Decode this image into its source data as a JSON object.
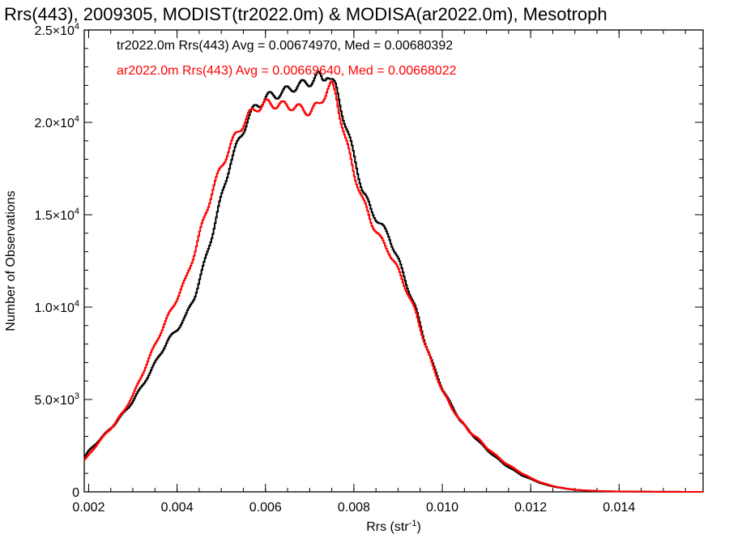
{
  "chart_data": {
    "type": "line",
    "title": "Rrs(443), 2009305, MODIST(tr2022.0m) & MODISA(ar2022.0m), Mesotroph",
    "xlabel": "Rrs (str",
    "xlabel_sup": "-1",
    "xlabel_close": ")",
    "ylabel": "Number of Observations",
    "xlim": [
      0.0019,
      0.0159
    ],
    "ylim": [
      0,
      25000
    ],
    "xticks": [
      {
        "value": 0.002,
        "label": "0.002"
      },
      {
        "value": 0.004,
        "label": "0.004"
      },
      {
        "value": 0.006,
        "label": "0.006"
      },
      {
        "value": 0.008,
        "label": "0.008"
      },
      {
        "value": 0.01,
        "label": "0.010"
      },
      {
        "value": 0.012,
        "label": "0.012"
      },
      {
        "value": 0.014,
        "label": "0.014"
      }
    ],
    "yticks": [
      {
        "value": 0,
        "mant": "0",
        "exp": ""
      },
      {
        "value": 5000,
        "mant": "5.0×10",
        "exp": "3"
      },
      {
        "value": 10000,
        "mant": "1.0×10",
        "exp": "4"
      },
      {
        "value": 15000,
        "mant": "1.5×10",
        "exp": "4"
      },
      {
        "value": 20000,
        "mant": "2.0×10",
        "exp": "4"
      },
      {
        "value": 25000,
        "mant": "2.5×10",
        "exp": "4"
      }
    ],
    "annotations": [
      {
        "text": "tr2022.0m Rrs(443) Avg = 0.00674970, Med = 0.00680392",
        "color": "#000000"
      },
      {
        "text": "ar2022.0m Rrs(443) Avg = 0.00669640, Med = 0.00668022",
        "color": "#ff0000"
      }
    ],
    "series": [
      {
        "color": "#000000",
        "x": [
          0.0019,
          0.002,
          0.0022,
          0.0024,
          0.0026,
          0.0028,
          0.003,
          0.0032,
          0.0034,
          0.0036,
          0.0038,
          0.004,
          0.0042,
          0.0044,
          0.0046,
          0.0048,
          0.005,
          0.0052,
          0.0054,
          0.0056,
          0.0058,
          0.006,
          0.0062,
          0.0064,
          0.0066,
          0.0068,
          0.007,
          0.0072,
          0.0073,
          0.0074,
          0.0076,
          0.0078,
          0.008,
          0.0082,
          0.0084,
          0.0086,
          0.0088,
          0.009,
          0.0092,
          0.0094,
          0.0096,
          0.0098,
          0.01,
          0.0102,
          0.0104,
          0.0106,
          0.0108,
          0.011,
          0.0112,
          0.0114,
          0.0116,
          0.0118,
          0.012,
          0.0122,
          0.0124,
          0.0126,
          0.0128,
          0.013,
          0.0132,
          0.0134,
          0.0136,
          0.0138,
          0.014,
          0.0145,
          0.015,
          0.0159
        ],
        "y": [
          1850,
          2200,
          2700,
          3200,
          3700,
          4300,
          4900,
          5700,
          6500,
          7400,
          8200,
          8800,
          9500,
          10600,
          12200,
          14000,
          15900,
          17800,
          19000,
          20200,
          20900,
          21300,
          21500,
          21600,
          21900,
          22000,
          22200,
          22500,
          22300,
          22700,
          21800,
          20000,
          18200,
          16300,
          15200,
          14500,
          13800,
          12600,
          11200,
          9900,
          8200,
          6800,
          5600,
          4700,
          3900,
          3300,
          2800,
          2300,
          1900,
          1500,
          1200,
          900,
          700,
          500,
          350,
          250,
          170,
          110,
          80,
          60,
          40,
          30,
          20,
          10,
          5,
          0
        ]
      },
      {
        "color": "#ff0000",
        "x": [
          0.0019,
          0.002,
          0.0022,
          0.0024,
          0.0026,
          0.0028,
          0.003,
          0.0032,
          0.0034,
          0.0036,
          0.0038,
          0.004,
          0.0042,
          0.0044,
          0.0046,
          0.0048,
          0.005,
          0.0052,
          0.0054,
          0.0056,
          0.0058,
          0.006,
          0.0062,
          0.0064,
          0.0066,
          0.0068,
          0.007,
          0.0072,
          0.0074,
          0.0075,
          0.0076,
          0.0078,
          0.008,
          0.0082,
          0.0084,
          0.0086,
          0.0088,
          0.009,
          0.0092,
          0.0094,
          0.0096,
          0.0098,
          0.01,
          0.0102,
          0.0104,
          0.0106,
          0.0108,
          0.011,
          0.0112,
          0.0114,
          0.0116,
          0.0118,
          0.012,
          0.0122,
          0.0124,
          0.0126,
          0.0128,
          0.013,
          0.0132,
          0.0134,
          0.0136,
          0.0138,
          0.014,
          0.0145,
          0.015,
          0.0159
        ],
        "y": [
          1700,
          2000,
          2600,
          3200,
          3700,
          4400,
          5200,
          6300,
          7400,
          8500,
          9500,
          10500,
          11500,
          13000,
          14700,
          16300,
          17600,
          18700,
          19600,
          20300,
          20800,
          21000,
          21000,
          20900,
          20900,
          20700,
          20600,
          20900,
          21800,
          22000,
          21400,
          19200,
          17300,
          15800,
          14600,
          13700,
          13000,
          12000,
          10900,
          9700,
          8100,
          6700,
          5500,
          4600,
          3900,
          3300,
          2900,
          2400,
          2000,
          1600,
          1300,
          1000,
          750,
          530,
          380,
          260,
          180,
          120,
          80,
          60,
          40,
          30,
          20,
          10,
          5,
          0
        ]
      }
    ]
  }
}
